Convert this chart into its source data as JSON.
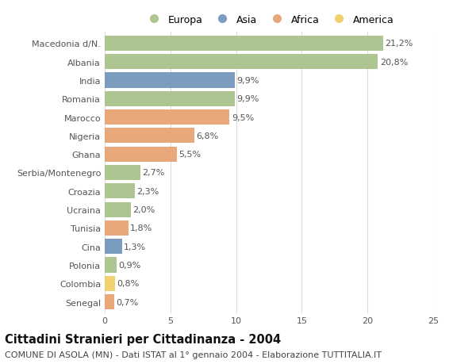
{
  "categories": [
    "Macedonia d/N.",
    "Albania",
    "India",
    "Romania",
    "Marocco",
    "Nigeria",
    "Ghana",
    "Serbia/Montenegro",
    "Croazia",
    "Ucraina",
    "Tunisia",
    "Cina",
    "Polonia",
    "Colombia",
    "Senegal"
  ],
  "values": [
    21.2,
    20.8,
    9.9,
    9.9,
    9.5,
    6.8,
    5.5,
    2.7,
    2.3,
    2.0,
    1.8,
    1.3,
    0.9,
    0.8,
    0.7
  ],
  "continents": [
    "Europa",
    "Europa",
    "Asia",
    "Europa",
    "Africa",
    "Africa",
    "Africa",
    "Europa",
    "Europa",
    "Europa",
    "Africa",
    "Asia",
    "Europa",
    "America",
    "Africa"
  ],
  "colors": {
    "Europa": "#adc590",
    "Asia": "#7b9bbf",
    "Africa": "#e8a87c",
    "America": "#f0d070"
  },
  "xlim": [
    0,
    25
  ],
  "xticks": [
    0,
    5,
    10,
    15,
    20,
    25
  ],
  "title": "Cittadini Stranieri per Cittadinanza - 2004",
  "subtitle": "COMUNE DI ASOLA (MN) - Dati ISTAT al 1° gennaio 2004 - Elaborazione TUTTITALIA.IT",
  "bg_color": "#ffffff",
  "grid_color": "#dddddd",
  "bar_height": 0.82,
  "label_fontsize": 8,
  "tick_fontsize": 8,
  "title_fontsize": 10.5,
  "subtitle_fontsize": 8
}
